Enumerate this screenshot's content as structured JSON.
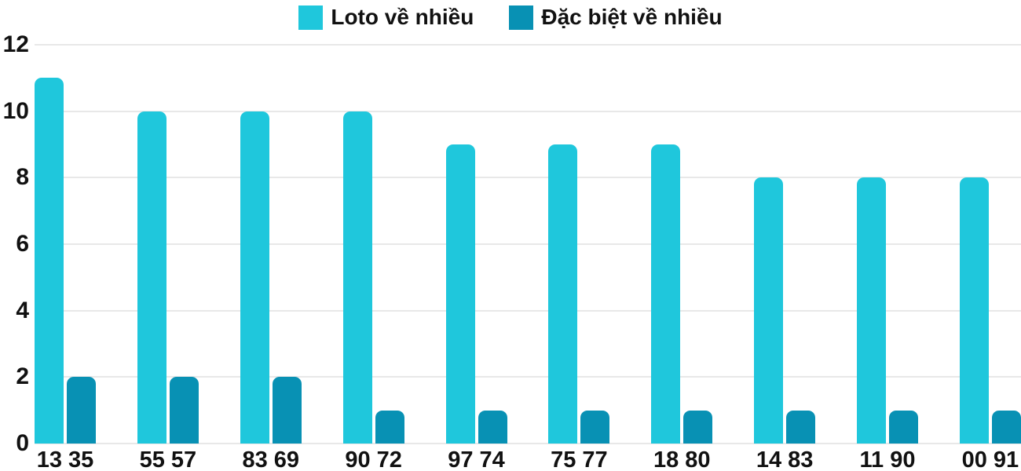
{
  "chart_data": {
    "type": "bar",
    "title": "",
    "categories": [
      "13 35",
      "55 57",
      "83 69",
      "90 72",
      "97 74",
      "75 77",
      "18 80",
      "14 83",
      "11 90",
      "00 91"
    ],
    "series": [
      {
        "name": "Loto về nhiều",
        "color": "#1fc7dc",
        "values": [
          11,
          10,
          10,
          10,
          9,
          9,
          9,
          8,
          8,
          8
        ]
      },
      {
        "name": "Đặc biệt về nhiều",
        "color": "#0891b4",
        "values": [
          2,
          2,
          2,
          1,
          1,
          1,
          1,
          1,
          1,
          1
        ]
      }
    ],
    "xlabel": "",
    "ylabel": "",
    "ylim": [
      0,
      12
    ],
    "yticks": [
      0,
      2,
      4,
      6,
      8,
      10,
      12
    ],
    "grid": true,
    "legend_position": "top-center",
    "colors": {
      "gridline": "#e8e8e8",
      "text": "#111111",
      "background": "#ffffff"
    }
  }
}
